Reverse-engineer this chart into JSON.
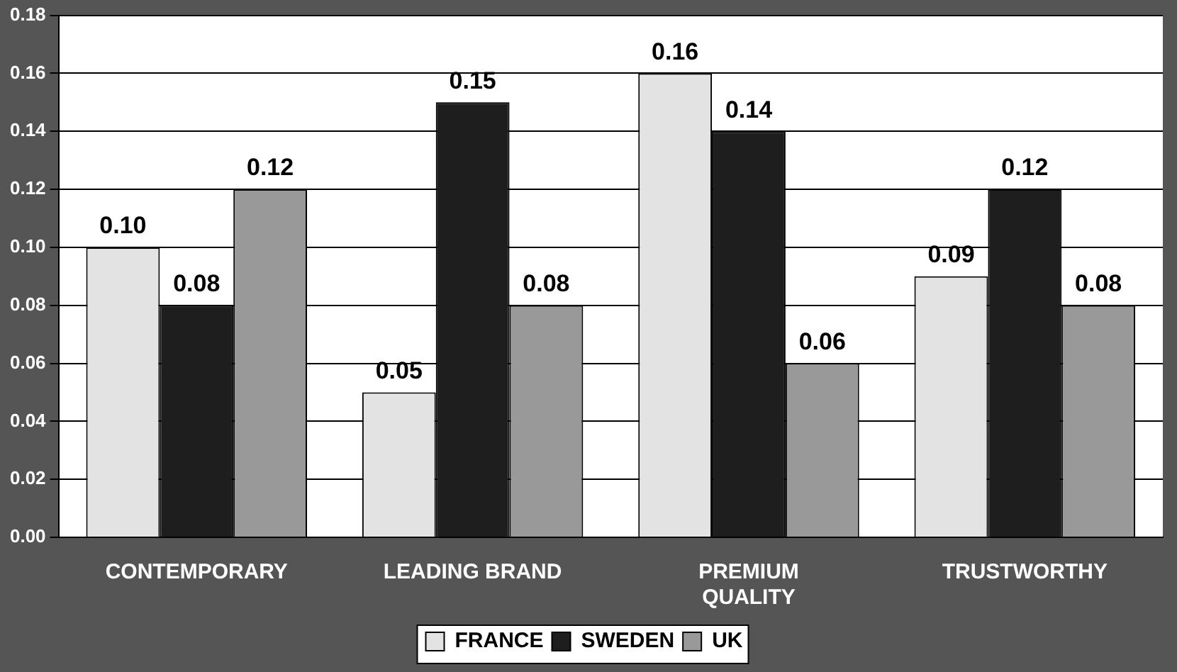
{
  "chart_data": {
    "type": "bar",
    "categories": [
      "CONTEMPORARY",
      "LEADING BRAND",
      "PREMIUM QUALITY",
      "TRUSTWORTHY"
    ],
    "series": [
      {
        "name": "FRANCE",
        "color": "#e3e3e3",
        "values": [
          0.1,
          0.05,
          0.16,
          0.09
        ],
        "value_labels": [
          "0.10",
          "0.05",
          "0.16",
          "0.09"
        ]
      },
      {
        "name": "SWEDEN",
        "color": "#1e1e1e",
        "values": [
          0.08,
          0.15,
          0.14,
          0.12
        ],
        "value_labels": [
          "0.08",
          "0.15",
          "0.14",
          "0.12"
        ]
      },
      {
        "name": "UK",
        "color": "#999999",
        "values": [
          0.12,
          0.08,
          0.06,
          0.08
        ],
        "value_labels": [
          "0.12",
          "0.08",
          "0.06",
          "0.08"
        ]
      }
    ],
    "ylim": [
      0,
      0.18
    ],
    "yticks": [
      {
        "value": 0,
        "label": "0.00"
      },
      {
        "value": 0.02,
        "label": "0.02"
      },
      {
        "value": 0.04,
        "label": "0.04"
      },
      {
        "value": 0.06,
        "label": "0.06"
      },
      {
        "value": 0.08,
        "label": "0.08"
      },
      {
        "value": 0.1,
        "label": "0.10"
      },
      {
        "value": 0.12,
        "label": "0.12"
      },
      {
        "value": 0.14,
        "label": "0.14"
      },
      {
        "value": 0.16,
        "label": "0.16"
      },
      {
        "value": 0.18,
        "label": "0.18"
      }
    ],
    "grid": "y",
    "legend": "bottom"
  }
}
